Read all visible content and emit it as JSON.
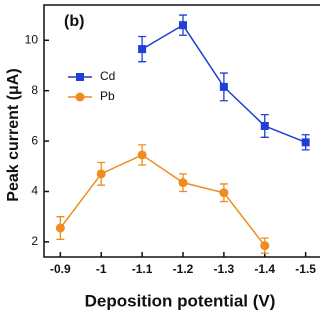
{
  "chart_data": {
    "type": "line",
    "annotation": "(b)",
    "x_label": "Deposition potential (V)",
    "y_label": "Peak current (μA)",
    "x": [
      -0.9,
      -1.0,
      -1.1,
      -1.2,
      -1.3,
      -1.4,
      -1.5
    ],
    "xlim": [
      -0.86,
      -1.54
    ],
    "xticks": [
      -0.9,
      -1.0,
      -1.1,
      -1.2,
      -1.3,
      -1.4,
      -1.5
    ],
    "ylim": [
      1.4,
      11.4
    ],
    "yticks": [
      2,
      4,
      6,
      8,
      10
    ],
    "legend": "upper left",
    "series": [
      {
        "name": "Cd",
        "color": "#1f3fd6",
        "marker": "square",
        "values": [
          null,
          null,
          9.65,
          10.6,
          8.15,
          6.6,
          5.95
        ],
        "errors": [
          null,
          null,
          0.5,
          0.4,
          0.55,
          0.45,
          0.3
        ]
      },
      {
        "name": "Pb",
        "color": "#f08c1e",
        "marker": "circle",
        "values": [
          2.55,
          4.7,
          5.45,
          4.35,
          3.95,
          1.85,
          null
        ],
        "errors": [
          0.45,
          0.45,
          0.4,
          0.35,
          0.35,
          0.3,
          null
        ]
      }
    ]
  }
}
